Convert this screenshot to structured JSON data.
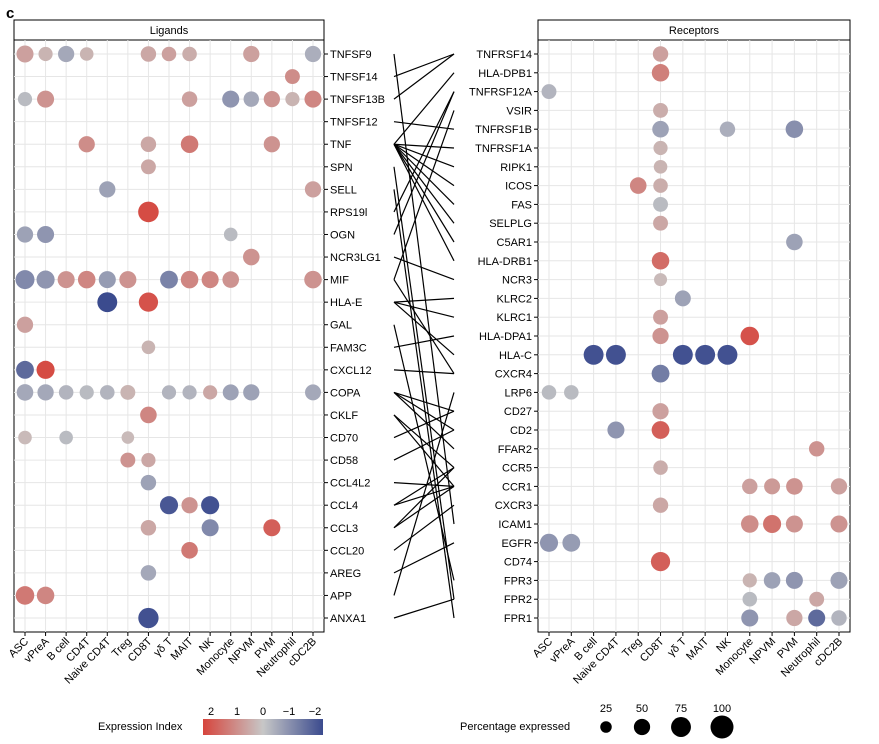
{
  "panel_label": "c",
  "chart_data": {
    "type": "scatter",
    "colors": {
      "high": "#d6453d",
      "mid": "#c7c7c7",
      "low": "#3b4b8e"
    },
    "color_scale_range": [
      2,
      -2
    ],
    "celltypes_ligand": [
      "ASC",
      "vPreA",
      "B cell",
      "CD4T",
      "Naive CD4T",
      "Treg",
      "CD8T",
      "γδ T",
      "MAIT",
      "NK",
      "Monocyte",
      "NPVM",
      "PVM",
      "Neutrophil",
      "cDC2B"
    ],
    "celltypes_receptor": [
      "ASC",
      "vPreA",
      "B cell",
      "Naive CD4T",
      "Treg",
      "CD8T",
      "γδ T",
      "MAIT",
      "NK",
      "Monocyte",
      "NPVM",
      "PVM",
      "Neutrophil",
      "cDC2B"
    ],
    "ligands": {
      "title": "Ligands",
      "genes": [
        "TNFSF9",
        "TNFSF14",
        "TNFSF13B",
        "TNFSF12",
        "TNF",
        "SPN",
        "SELL",
        "RPS19l",
        "OGN",
        "NCR3LG1",
        "MIF",
        "HLA-E",
        "GAL",
        "FAM3C",
        "CXCL12",
        "COPA",
        "CKLF",
        "CD70",
        "CD58",
        "CCL4L2",
        "CCL4",
        "CCL3",
        "CCL20",
        "AREG",
        "APP",
        "ANXA1"
      ],
      "points": [
        [
          0,
          0,
          55,
          0.6
        ],
        [
          0,
          1,
          38,
          0.3
        ],
        [
          0,
          2,
          50,
          -0.5
        ],
        [
          0,
          3,
          35,
          0.3
        ],
        [
          0,
          6,
          45,
          0.5
        ],
        [
          0,
          7,
          40,
          0.6
        ],
        [
          0,
          8,
          40,
          0.4
        ],
        [
          0,
          11,
          50,
          0.6
        ],
        [
          0,
          14,
          50,
          -0.4
        ],
        [
          1,
          13,
          42,
          0.9
        ],
        [
          2,
          0,
          38,
          -0.2
        ],
        [
          2,
          1,
          55,
          0.8
        ],
        [
          2,
          8,
          45,
          0.6
        ],
        [
          2,
          10,
          55,
          -0.8
        ],
        [
          2,
          11,
          45,
          -0.5
        ],
        [
          2,
          12,
          50,
          0.8
        ],
        [
          2,
          13,
          38,
          0.3
        ],
        [
          2,
          14,
          55,
          1.0
        ],
        [
          4,
          3,
          50,
          0.9
        ],
        [
          4,
          6,
          45,
          0.5
        ],
        [
          4,
          8,
          58,
          1.2
        ],
        [
          4,
          12,
          50,
          0.8
        ],
        [
          5,
          6,
          42,
          0.5
        ],
        [
          6,
          4,
          50,
          -0.6
        ],
        [
          6,
          14,
          50,
          0.6
        ],
        [
          7,
          6,
          80,
          1.9
        ],
        [
          8,
          0,
          50,
          -0.6
        ],
        [
          8,
          1,
          55,
          -0.8
        ],
        [
          8,
          10,
          35,
          -0.2
        ],
        [
          9,
          11,
          52,
          0.8
        ],
        [
          10,
          0,
          68,
          -1.0
        ],
        [
          10,
          1,
          62,
          -0.8
        ],
        [
          10,
          2,
          55,
          0.8
        ],
        [
          10,
          3,
          58,
          1.0
        ],
        [
          10,
          4,
          55,
          -0.7
        ],
        [
          10,
          5,
          55,
          0.8
        ],
        [
          10,
          7,
          60,
          -1.1
        ],
        [
          10,
          8,
          58,
          1.0
        ],
        [
          10,
          9,
          55,
          1.0
        ],
        [
          10,
          10,
          52,
          0.8
        ],
        [
          10,
          14,
          58,
          0.8
        ],
        [
          11,
          4,
          75,
          -2.0
        ],
        [
          11,
          6,
          70,
          1.8
        ],
        [
          12,
          0,
          50,
          0.6
        ],
        [
          13,
          6,
          35,
          0.3
        ],
        [
          14,
          0,
          60,
          -1.5
        ],
        [
          14,
          1,
          62,
          1.9
        ],
        [
          15,
          0,
          52,
          -0.5
        ],
        [
          15,
          1,
          50,
          -0.5
        ],
        [
          15,
          2,
          40,
          -0.3
        ],
        [
          15,
          3,
          38,
          -0.2
        ],
        [
          15,
          4,
          40,
          -0.3
        ],
        [
          15,
          5,
          42,
          0.3
        ],
        [
          15,
          7,
          38,
          -0.3
        ],
        [
          15,
          8,
          38,
          -0.3
        ],
        [
          15,
          9,
          38,
          0.5
        ],
        [
          15,
          10,
          48,
          -0.6
        ],
        [
          15,
          11,
          50,
          -0.6
        ],
        [
          15,
          14,
          48,
          -0.5
        ],
        [
          16,
          6,
          52,
          1.0
        ],
        [
          17,
          0,
          35,
          0.2
        ],
        [
          17,
          2,
          35,
          -0.2
        ],
        [
          17,
          5,
          30,
          0.2
        ],
        [
          18,
          5,
          42,
          0.8
        ],
        [
          18,
          6,
          38,
          0.5
        ],
        [
          19,
          6,
          45,
          -0.6
        ],
        [
          20,
          7,
          62,
          -1.8
        ],
        [
          20,
          8,
          50,
          0.8
        ],
        [
          20,
          9,
          62,
          -1.9
        ],
        [
          21,
          6,
          45,
          0.5
        ],
        [
          21,
          9,
          55,
          -1.0
        ],
        [
          21,
          12,
          55,
          1.6
        ],
        [
          22,
          8,
          52,
          1.2
        ],
        [
          23,
          6,
          45,
          -0.5
        ],
        [
          24,
          0,
          65,
          1.2
        ],
        [
          24,
          1,
          58,
          1.0
        ],
        [
          25,
          6,
          78,
          -1.9
        ]
      ]
    },
    "receptors": {
      "title": "Receptors",
      "genes": [
        "TNFRSF14",
        "HLA-DPB1",
        "TNFRSF12A",
        "VSIR",
        "TNFRSF1B",
        "TNFRSF1A",
        "RIPK1",
        "ICOS",
        "FAS",
        "SELPLG",
        "C5AR1",
        "HLA-DRB1",
        "NCR3",
        "KLRC2",
        "KLRC1",
        "HLA-DPA1",
        "HLA-C",
        "CXCR4",
        "LRP6",
        "CD27",
        "CD2",
        "FFAR2",
        "CCR5",
        "CCR1",
        "CXCR3",
        "ICAM1",
        "EGFR",
        "CD74",
        "FPR3",
        "FPR2",
        "FPR1"
      ],
      "points": [
        [
          0,
          5,
          45,
          0.6
        ],
        [
          1,
          5,
          58,
          1.1
        ],
        [
          2,
          0,
          42,
          -0.3
        ],
        [
          3,
          5,
          42,
          0.4
        ],
        [
          4,
          5,
          52,
          -0.6
        ],
        [
          4,
          8,
          45,
          -0.4
        ],
        [
          4,
          11,
          58,
          -0.9
        ],
        [
          5,
          5,
          38,
          0.3
        ],
        [
          6,
          5,
          35,
          0.3
        ],
        [
          7,
          4,
          52,
          1.0
        ],
        [
          7,
          5,
          40,
          0.4
        ],
        [
          8,
          5,
          42,
          -0.2
        ],
        [
          9,
          5,
          42,
          0.5
        ],
        [
          10,
          11,
          52,
          -0.6
        ],
        [
          11,
          5,
          58,
          1.4
        ],
        [
          12,
          5,
          32,
          0.2
        ],
        [
          13,
          6,
          48,
          -0.6
        ],
        [
          14,
          5,
          42,
          0.6
        ],
        [
          15,
          5,
          50,
          0.8
        ],
        [
          15,
          9,
          65,
          1.8
        ],
        [
          16,
          2,
          75,
          -1.9
        ],
        [
          16,
          3,
          75,
          -1.9
        ],
        [
          16,
          6,
          75,
          -1.9
        ],
        [
          16,
          7,
          75,
          -1.9
        ],
        [
          16,
          8,
          75,
          -1.9
        ],
        [
          17,
          5,
          60,
          -1.2
        ],
        [
          18,
          0,
          40,
          -0.2
        ],
        [
          18,
          1,
          40,
          -0.2
        ],
        [
          19,
          5,
          50,
          0.6
        ],
        [
          20,
          3,
          55,
          -0.8
        ],
        [
          20,
          5,
          60,
          1.6
        ],
        [
          21,
          12,
          45,
          0.8
        ],
        [
          22,
          5,
          40,
          0.4
        ],
        [
          23,
          9,
          45,
          0.6
        ],
        [
          23,
          10,
          48,
          0.7
        ],
        [
          23,
          11,
          52,
          0.8
        ],
        [
          23,
          13,
          50,
          0.6
        ],
        [
          24,
          5,
          45,
          0.5
        ],
        [
          25,
          9,
          58,
          0.9
        ],
        [
          25,
          10,
          62,
          1.3
        ],
        [
          25,
          11,
          55,
          0.8
        ],
        [
          25,
          13,
          55,
          0.8
        ],
        [
          26,
          0,
          62,
          -0.8
        ],
        [
          26,
          1,
          60,
          -0.7
        ],
        [
          27,
          5,
          70,
          1.6
        ],
        [
          28,
          9,
          38,
          0.3
        ],
        [
          28,
          10,
          52,
          -0.6
        ],
        [
          28,
          11,
          55,
          -0.8
        ],
        [
          28,
          13,
          55,
          -0.6
        ],
        [
          29,
          9,
          40,
          -0.2
        ],
        [
          29,
          12,
          42,
          0.5
        ],
        [
          30,
          9,
          55,
          -0.8
        ],
        [
          30,
          11,
          50,
          0.5
        ],
        [
          30,
          12,
          55,
          -1.5
        ],
        [
          30,
          13,
          45,
          -0.3
        ]
      ]
    },
    "links": [
      [
        0,
        25
      ],
      [
        1,
        0
      ],
      [
        2,
        0
      ],
      [
        3,
        4
      ],
      [
        4,
        1
      ],
      [
        4,
        5
      ],
      [
        4,
        6
      ],
      [
        4,
        7
      ],
      [
        4,
        8
      ],
      [
        4,
        9
      ],
      [
        4,
        10
      ],
      [
        4,
        11
      ],
      [
        5,
        29
      ],
      [
        6,
        30
      ],
      [
        7,
        2
      ],
      [
        8,
        2
      ],
      [
        9,
        12
      ],
      [
        10,
        3
      ],
      [
        10,
        17
      ],
      [
        11,
        13
      ],
      [
        11,
        14
      ],
      [
        11,
        16
      ],
      [
        12,
        28
      ],
      [
        13,
        15
      ],
      [
        14,
        17
      ],
      [
        15,
        19
      ],
      [
        15,
        20
      ],
      [
        15,
        21
      ],
      [
        16,
        22
      ],
      [
        16,
        23
      ],
      [
        17,
        19
      ],
      [
        18,
        20
      ],
      [
        19,
        23
      ],
      [
        20,
        22
      ],
      [
        20,
        23
      ],
      [
        21,
        23
      ],
      [
        21,
        22
      ],
      [
        22,
        24
      ],
      [
        23,
        26
      ],
      [
        24,
        18
      ],
      [
        25,
        29
      ]
    ]
  },
  "legend_color": {
    "title": "Expression Index",
    "ticks": [
      "2",
      "1",
      "0",
      "−1",
      "−2"
    ]
  },
  "legend_size": {
    "title": "Percentage expressed",
    "ticks": [
      "25",
      "50",
      "75",
      "100"
    ],
    "values": [
      25,
      50,
      75,
      100
    ]
  }
}
